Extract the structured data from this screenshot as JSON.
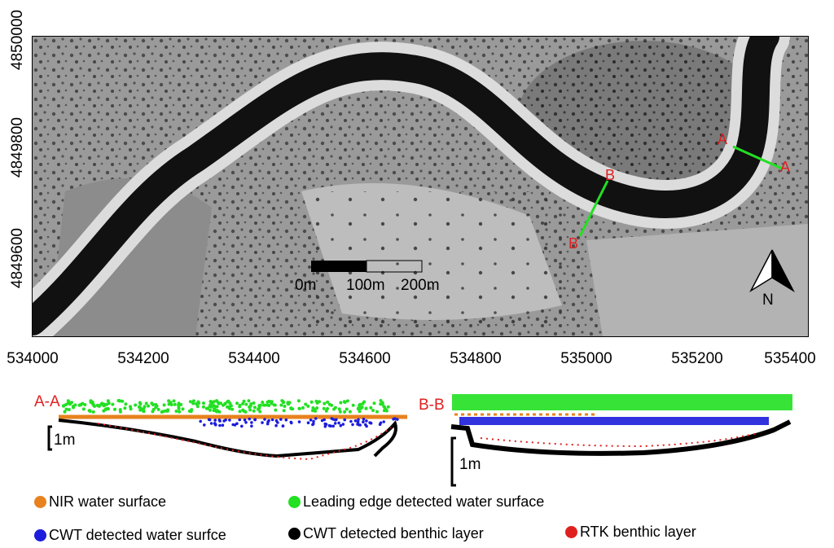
{
  "map": {
    "y_ticks": [
      "4850000",
      "4849800",
      "4849600"
    ],
    "x_ticks": [
      "534000",
      "534200",
      "534400",
      "534600",
      "534800",
      "535000",
      "535200",
      "535400"
    ],
    "section_labels": {
      "a": "A",
      "b": "B"
    },
    "scale_bar": {
      "labels": [
        "0m",
        "100m",
        "200m"
      ]
    },
    "north_arrow": {
      "label": "N"
    }
  },
  "profiles": {
    "a_title": "A-A",
    "b_title": "B-B",
    "a_scale": "1m",
    "b_scale": "1m"
  },
  "legend": {
    "items": [
      {
        "label": "NIR water surface",
        "color": "#e8821e"
      },
      {
        "label": "Leading edge detected water surface",
        "color": "#22e022"
      },
      {
        "label": "CWT detected water surfce",
        "color": "#1c1cdc"
      },
      {
        "label": "CWT detected benthic layer",
        "color": "#000000"
      },
      {
        "label": "RTK benthic layer",
        "color": "#e02020"
      }
    ]
  }
}
